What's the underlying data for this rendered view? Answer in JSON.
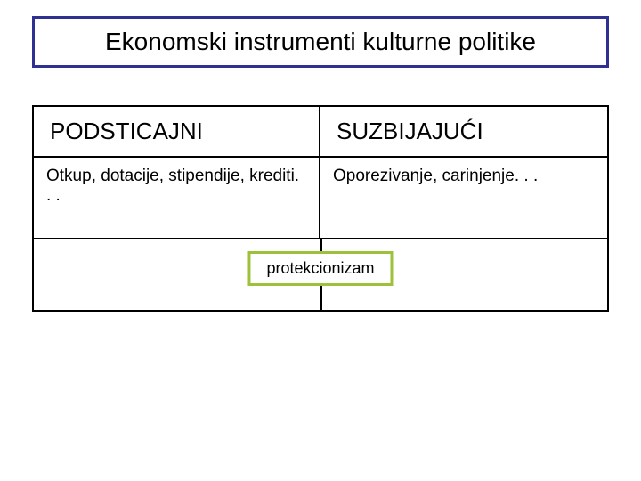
{
  "colors": {
    "title_border": "#2e3192",
    "table_border": "#000000",
    "protekcionizam_border": "#9ec13c",
    "background": "#ffffff",
    "text": "#000000"
  },
  "title": {
    "text": "Ekonomski instrumenti kulturne politike",
    "fontsize": 28
  },
  "table": {
    "type": "table",
    "columns": [
      {
        "key": "podsticajni",
        "header": "PODSTICAJNI"
      },
      {
        "key": "suzbijajuci",
        "header": "SUZBIJAJUĆI"
      }
    ],
    "rows": [
      {
        "podsticajni": "Otkup, dotacije, stipendije, krediti. . .",
        "suzbijajuci": "Oporezivanje, carinjenje. . ."
      }
    ],
    "footer_overlay": {
      "label": "protekcionizam"
    },
    "header_fontsize": 26,
    "cell_fontsize": 19,
    "border_color": "#000000",
    "col_widths_pct": [
      50,
      50
    ]
  }
}
